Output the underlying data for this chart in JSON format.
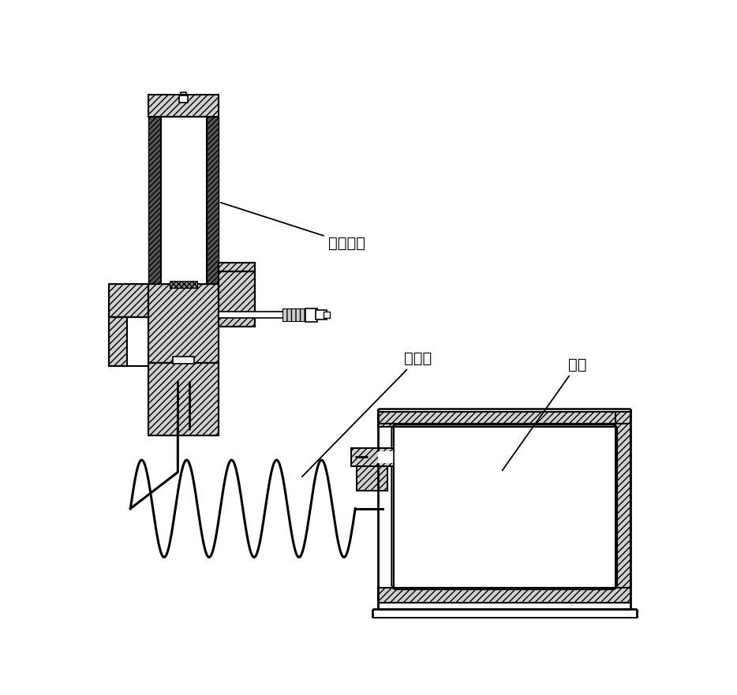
{
  "background_color": "#ffffff",
  "label_lengzhi": "冷指组件",
  "label_guanxing": "惯性管",
  "label_qiku": "气库"
}
